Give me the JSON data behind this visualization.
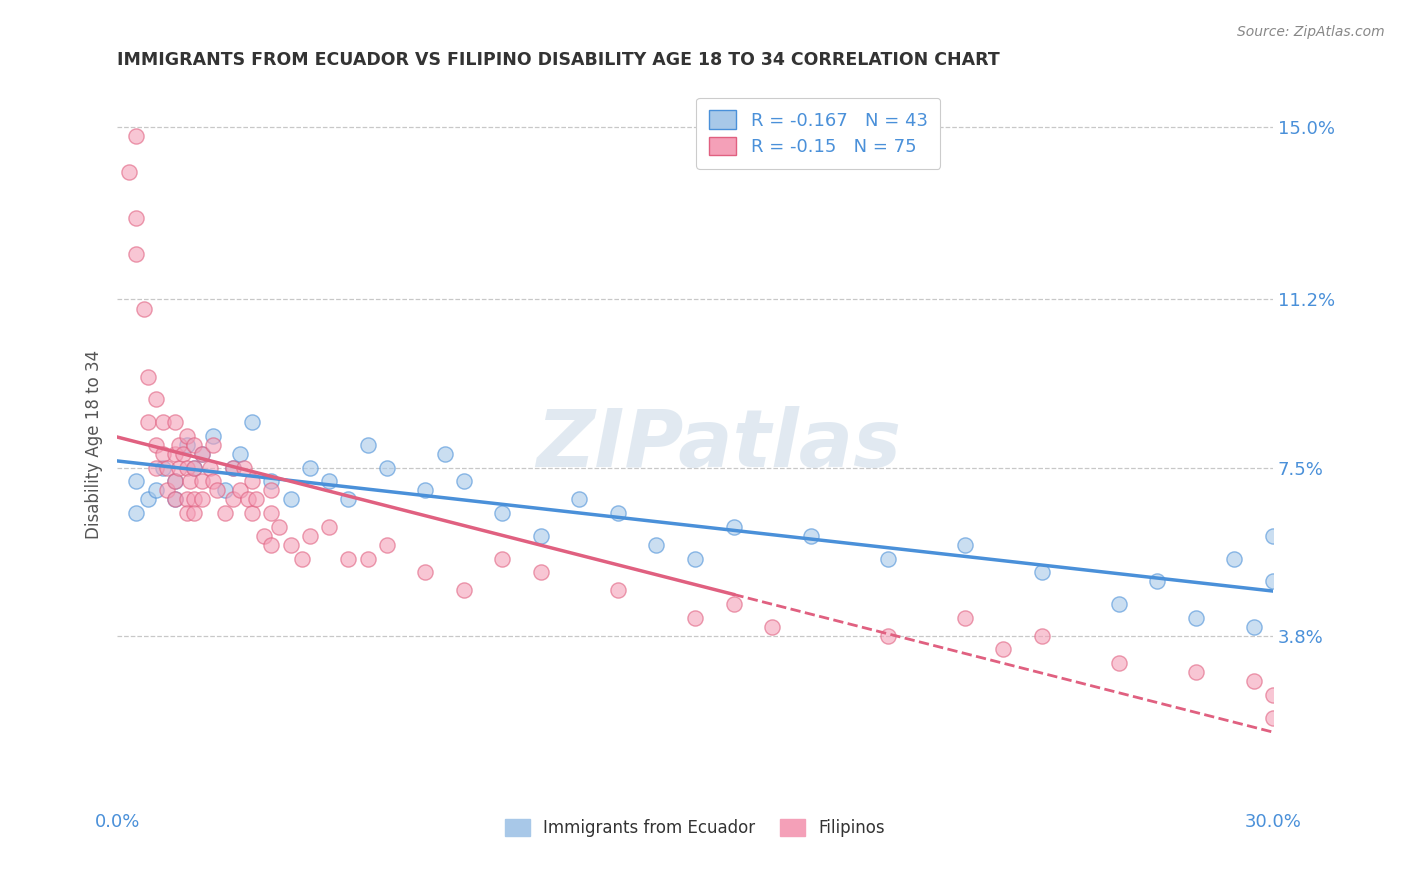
{
  "title": "IMMIGRANTS FROM ECUADOR VS FILIPINO DISABILITY AGE 18 TO 34 CORRELATION CHART",
  "source_text": "Source: ZipAtlas.com",
  "ylabel": "Disability Age 18 to 34",
  "xlim": [
    0.0,
    0.3
  ],
  "ylim": [
    0.0,
    0.16
  ],
  "yticks": [
    0.038,
    0.075,
    0.112,
    0.15
  ],
  "ytick_labels": [
    "3.8%",
    "7.5%",
    "11.2%",
    "15.0%"
  ],
  "xticks": [
    0.0,
    0.3
  ],
  "xtick_labels": [
    "0.0%",
    "30.0%"
  ],
  "ecuador_R": -0.167,
  "ecuador_N": 43,
  "filipino_R": -0.15,
  "filipino_N": 75,
  "ecuador_color": "#a8c8e8",
  "filipino_color": "#f4a0b8",
  "ecuador_line_color": "#4a90d9",
  "filipino_line_color": "#e06080",
  "watermark": "ZIPatlas",
  "background_color": "#ffffff",
  "grid_color": "#c8c8c8",
  "ecuador_scatter_x": [
    0.005,
    0.005,
    0.008,
    0.01,
    0.012,
    0.015,
    0.015,
    0.018,
    0.02,
    0.022,
    0.025,
    0.028,
    0.03,
    0.032,
    0.035,
    0.04,
    0.045,
    0.05,
    0.055,
    0.06,
    0.065,
    0.07,
    0.08,
    0.085,
    0.09,
    0.1,
    0.11,
    0.12,
    0.13,
    0.14,
    0.15,
    0.16,
    0.18,
    0.2,
    0.22,
    0.24,
    0.26,
    0.27,
    0.28,
    0.29,
    0.295,
    0.3,
    0.3
  ],
  "ecuador_scatter_y": [
    0.072,
    0.065,
    0.068,
    0.07,
    0.075,
    0.072,
    0.068,
    0.08,
    0.075,
    0.078,
    0.082,
    0.07,
    0.075,
    0.078,
    0.085,
    0.072,
    0.068,
    0.075,
    0.072,
    0.068,
    0.08,
    0.075,
    0.07,
    0.078,
    0.072,
    0.065,
    0.06,
    0.068,
    0.065,
    0.058,
    0.055,
    0.062,
    0.06,
    0.055,
    0.058,
    0.052,
    0.045,
    0.05,
    0.042,
    0.055,
    0.04,
    0.06,
    0.05
  ],
  "filipino_scatter_x": [
    0.003,
    0.005,
    0.005,
    0.005,
    0.007,
    0.008,
    0.008,
    0.01,
    0.01,
    0.01,
    0.012,
    0.012,
    0.013,
    0.013,
    0.015,
    0.015,
    0.015,
    0.015,
    0.016,
    0.016,
    0.017,
    0.018,
    0.018,
    0.018,
    0.018,
    0.019,
    0.02,
    0.02,
    0.02,
    0.02,
    0.022,
    0.022,
    0.022,
    0.024,
    0.025,
    0.025,
    0.026,
    0.028,
    0.03,
    0.03,
    0.032,
    0.033,
    0.034,
    0.035,
    0.035,
    0.036,
    0.038,
    0.04,
    0.04,
    0.04,
    0.042,
    0.045,
    0.048,
    0.05,
    0.055,
    0.06,
    0.065,
    0.07,
    0.08,
    0.09,
    0.1,
    0.11,
    0.13,
    0.15,
    0.16,
    0.17,
    0.2,
    0.22,
    0.23,
    0.24,
    0.26,
    0.28,
    0.295,
    0.3,
    0.3
  ],
  "filipino_scatter_y": [
    0.14,
    0.148,
    0.13,
    0.122,
    0.11,
    0.095,
    0.085,
    0.09,
    0.08,
    0.075,
    0.085,
    0.078,
    0.075,
    0.07,
    0.085,
    0.078,
    0.072,
    0.068,
    0.08,
    0.075,
    0.078,
    0.082,
    0.075,
    0.068,
    0.065,
    0.072,
    0.08,
    0.075,
    0.068,
    0.065,
    0.078,
    0.072,
    0.068,
    0.075,
    0.08,
    0.072,
    0.07,
    0.065,
    0.075,
    0.068,
    0.07,
    0.075,
    0.068,
    0.072,
    0.065,
    0.068,
    0.06,
    0.065,
    0.07,
    0.058,
    0.062,
    0.058,
    0.055,
    0.06,
    0.062,
    0.055,
    0.055,
    0.058,
    0.052,
    0.048,
    0.055,
    0.052,
    0.048,
    0.042,
    0.045,
    0.04,
    0.038,
    0.042,
    0.035,
    0.038,
    0.032,
    0.03,
    0.028,
    0.025,
    0.02
  ]
}
